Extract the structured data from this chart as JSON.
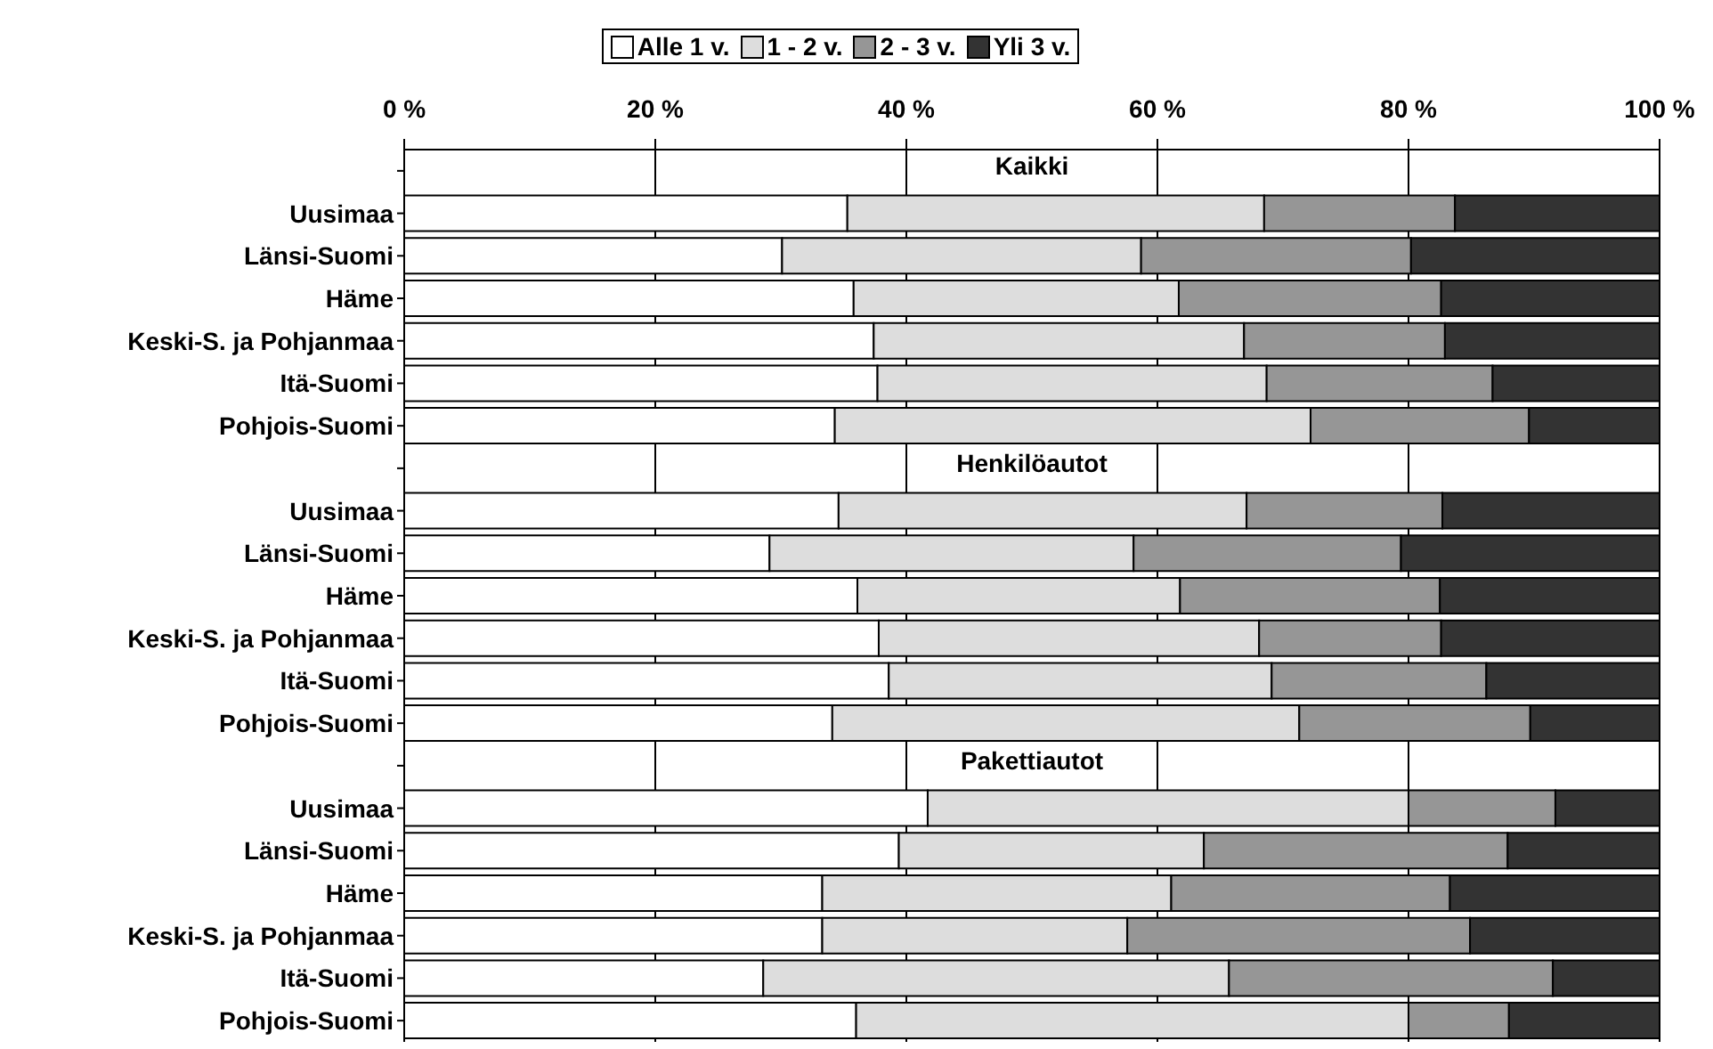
{
  "chart_data": {
    "type": "bar",
    "orientation": "horizontal",
    "stacked": true,
    "categories": [
      "Kaikki",
      "Uusimaa",
      "Länsi-Suomi",
      "Häme",
      "Keski-S. ja Pohjanmaa",
      "Itä-Suomi",
      "Pohjois-Suomi",
      "Henkilöautot",
      "Uusimaa",
      "Länsi-Suomi",
      "Häme",
      "Keski-S. ja Pohjanmaa",
      "Itä-Suomi",
      "Pohjois-Suomi",
      "Pakettiautot",
      "Uusimaa",
      "Länsi-Suomi",
      "Häme",
      "Keski-S. ja Pohjanmaa",
      "Itä-Suomi",
      "Pohjois-Suomi"
    ],
    "series": [
      {
        "name": "Alle 1 v.",
        "color": "#ffffff",
        "values": [
          null,
          35.3,
          30.1,
          35.8,
          37.4,
          37.7,
          34.3,
          null,
          34.6,
          29.1,
          36.1,
          37.8,
          38.6,
          34.1,
          null,
          41.7,
          39.4,
          33.3,
          33.3,
          28.6,
          36.0
        ]
      },
      {
        "name": "1 - 2 v.",
        "color": "#dddddd",
        "values": [
          null,
          33.2,
          28.6,
          25.9,
          29.5,
          31.0,
          37.9,
          null,
          32.5,
          29.0,
          25.7,
          30.3,
          30.5,
          37.2,
          null,
          38.3,
          24.3,
          27.8,
          24.3,
          37.1,
          44.0
        ]
      },
      {
        "name": "2 - 3 v.",
        "color": "#969696",
        "values": [
          null,
          15.2,
          21.5,
          20.9,
          16.0,
          18.0,
          17.4,
          null,
          15.6,
          21.3,
          20.7,
          14.5,
          17.1,
          18.4,
          null,
          11.7,
          24.2,
          22.2,
          27.3,
          25.8,
          8.0
        ]
      },
      {
        "name": "Yli 3 v.",
        "color": "#333333",
        "values": [
          null,
          16.3,
          19.8,
          17.4,
          17.1,
          13.3,
          10.4,
          null,
          17.3,
          20.6,
          17.5,
          17.4,
          13.8,
          10.3,
          null,
          8.3,
          12.1,
          16.7,
          15.1,
          8.5,
          12.0
        ]
      }
    ],
    "xlim": [
      0,
      100
    ],
    "xticks": [
      {
        "value": 0,
        "label": "0 %"
      },
      {
        "value": 20,
        "label": "20 %"
      },
      {
        "value": 40,
        "label": "40 %"
      },
      {
        "value": 60,
        "label": "60 %"
      },
      {
        "value": 80,
        "label": "80 %"
      },
      {
        "value": 100,
        "label": "100 %"
      }
    ],
    "grid": "x",
    "legend": "top"
  }
}
